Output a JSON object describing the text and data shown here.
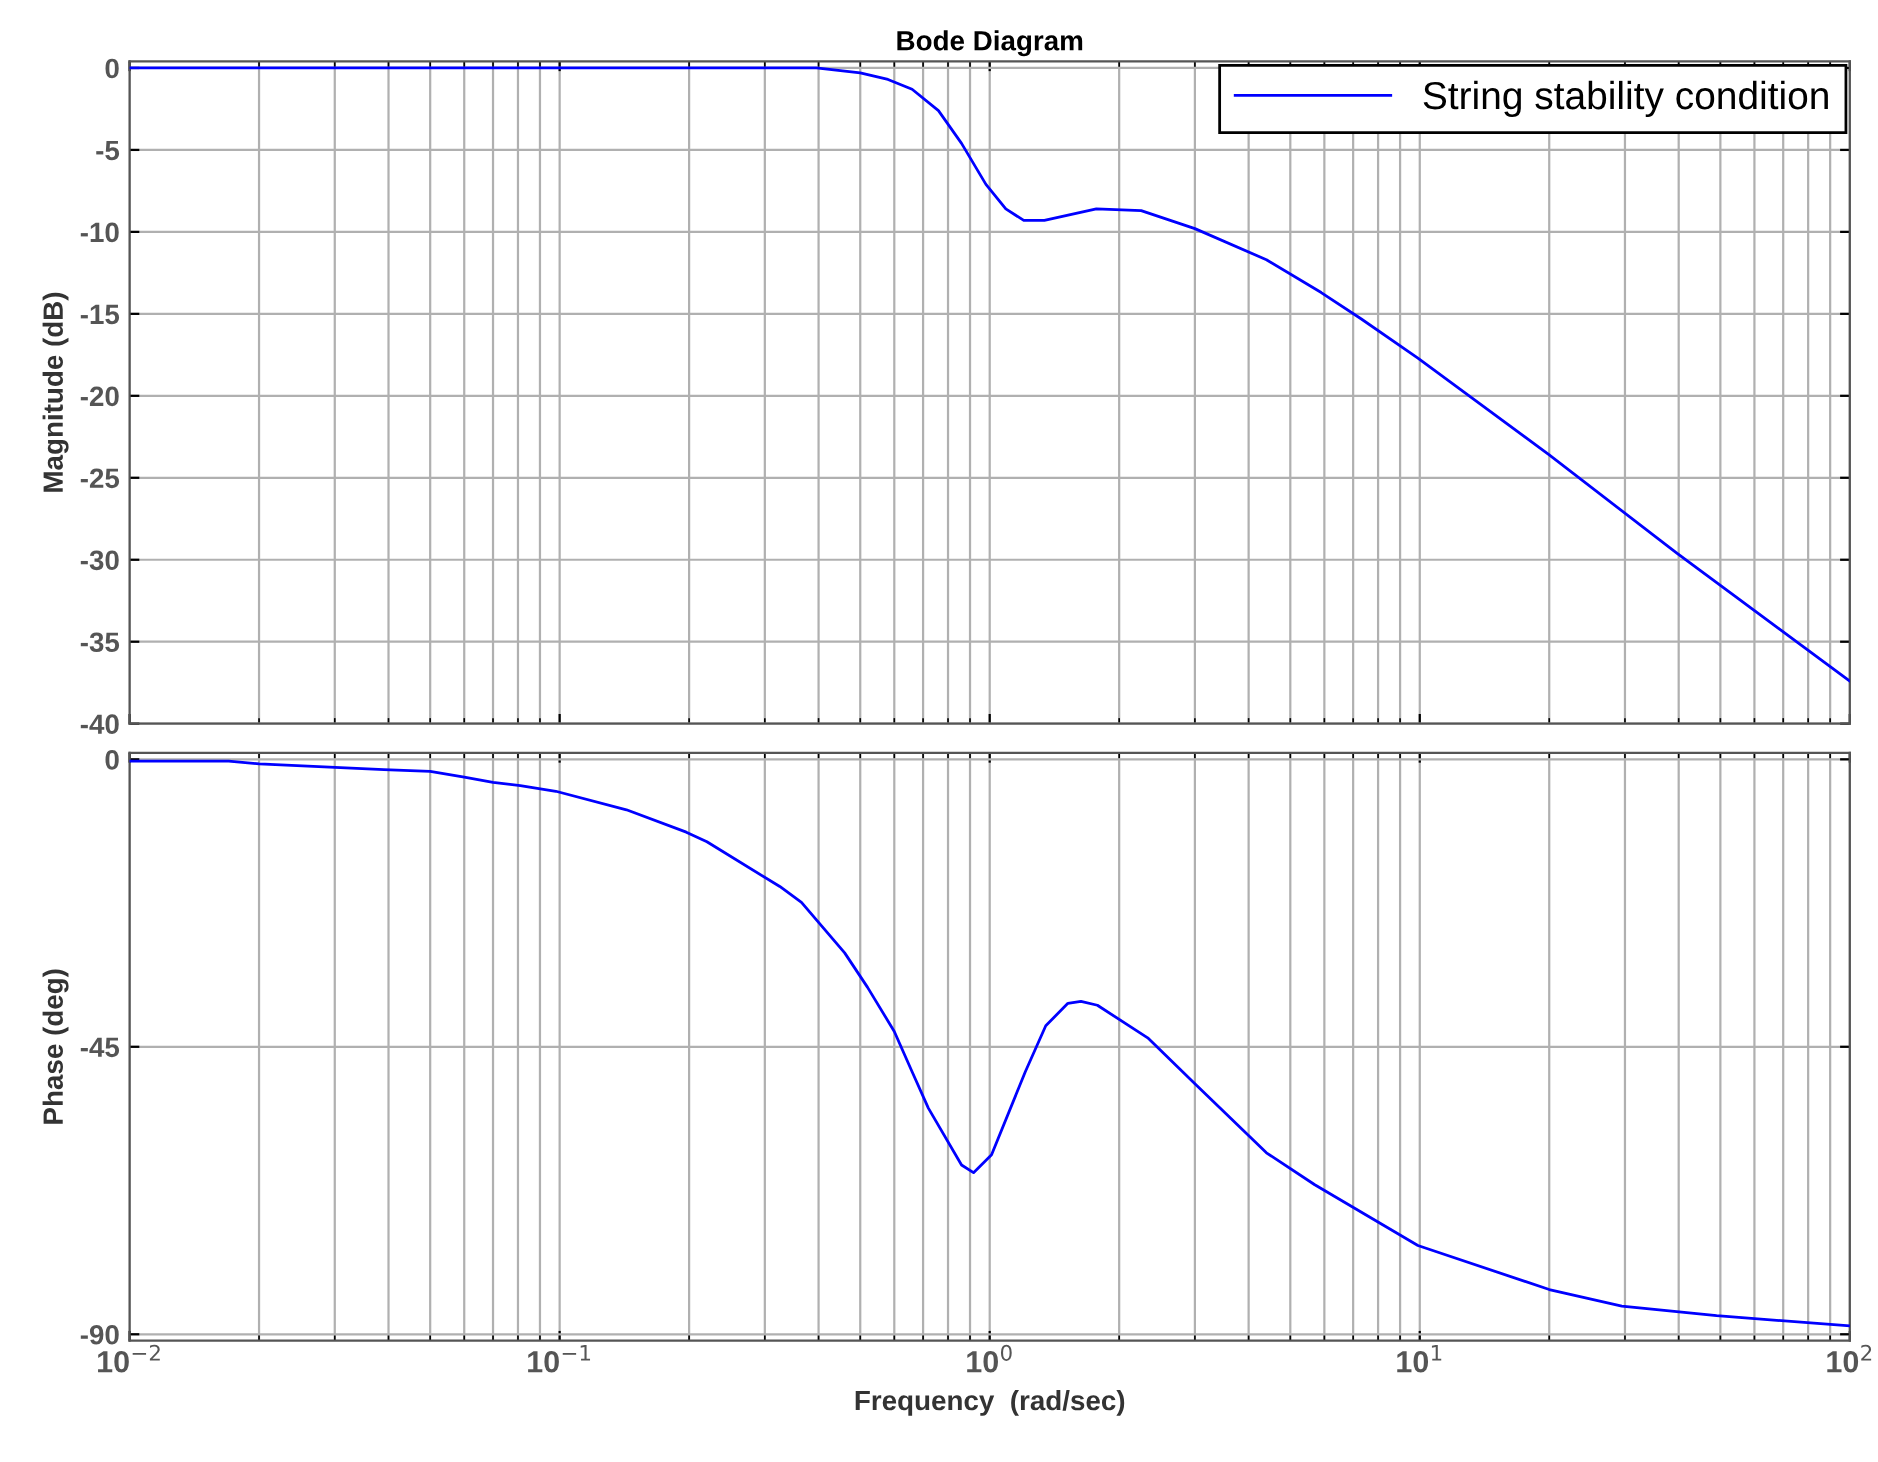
{
  "chart_data": [
    {
      "type": "line",
      "title": "Bode Diagram",
      "ylabel": "Magnitude (dB)",
      "log": "x",
      "grid": true,
      "legend": "top right",
      "tick_labels": "y",
      "xlim": [
        0.01,
        100
      ],
      "ylim": [
        -40,
        0.4
      ],
      "yticks": [
        0,
        -5,
        -10,
        -15,
        -20,
        -25,
        -30,
        -35,
        -40
      ],
      "series": [
        {
          "name": "String stability condition",
          "color": "#0000ff",
          "x": [
            0.01,
            0.278,
            0.395,
            0.5,
            0.58,
            0.66,
            0.76,
            0.86,
            0.98,
            1.09,
            1.2,
            1.34,
            1.77,
            2.25,
            3.0,
            4.4,
            5.9,
            7.3,
            9.9,
            20,
            39.6,
            100
          ],
          "values": [
            0,
            0,
            0,
            -0.3,
            -0.7,
            -1.3,
            -2.6,
            -4.6,
            -7.1,
            -8.6,
            -9.3,
            -9.3,
            -8.6,
            -8.7,
            -9.8,
            -11.7,
            -13.7,
            -15.3,
            -17.7,
            -23.6,
            -29.6,
            -37.4
          ]
        }
      ]
    },
    {
      "type": "line",
      "xlabel": "Frequency  (rad/sec)",
      "ylabel": "Phase (deg)",
      "log": "x",
      "grid": true,
      "xlim": [
        0.01,
        100
      ],
      "ylim": [
        -91,
        1
      ],
      "xticks": [
        {
          "value": 0.01,
          "label": "10$^{−2}$"
        },
        {
          "value": 0.1,
          "label": "10$^{−1}$"
        },
        {
          "value": 1,
          "label": "10$^{0}$"
        },
        {
          "value": 10,
          "label": "10$^{1}$"
        },
        {
          "value": 100,
          "label": "10$^{2}$"
        }
      ],
      "yticks": [
        0,
        -45,
        -90
      ],
      "series": [
        {
          "color": "#0000ff",
          "x": [
            0.01,
            0.017,
            0.02,
            0.039,
            0.05,
            0.06,
            0.07,
            0.081,
            0.098,
            0.143,
            0.197,
            0.22,
            0.325,
            0.365,
            0.46,
            0.52,
            0.6,
            0.66,
            0.72,
            0.86,
            0.917,
            1.01,
            1.21,
            1.35,
            1.52,
            1.63,
            1.78,
            2.33,
            3.0,
            4.4,
            5.7,
            9.9,
            20,
            29.5,
            49,
            100
          ],
          "values": [
            -0.3,
            -0.3,
            -0.7,
            -1.6,
            -1.9,
            -2.8,
            -3.6,
            -4.1,
            -5.0,
            -7.9,
            -11.4,
            -12.9,
            -19.9,
            -22.4,
            -30.3,
            -35.7,
            -42.6,
            -48.9,
            -54.6,
            -63.5,
            -64.7,
            -61.9,
            -48.9,
            -41.7,
            -38.2,
            -37.9,
            -38.5,
            -43.6,
            -50.8,
            -61.6,
            -66.6,
            -76.1,
            -83.0,
            -85.6,
            -87.1,
            -88.7
          ]
        }
      ]
    }
  ]
}
